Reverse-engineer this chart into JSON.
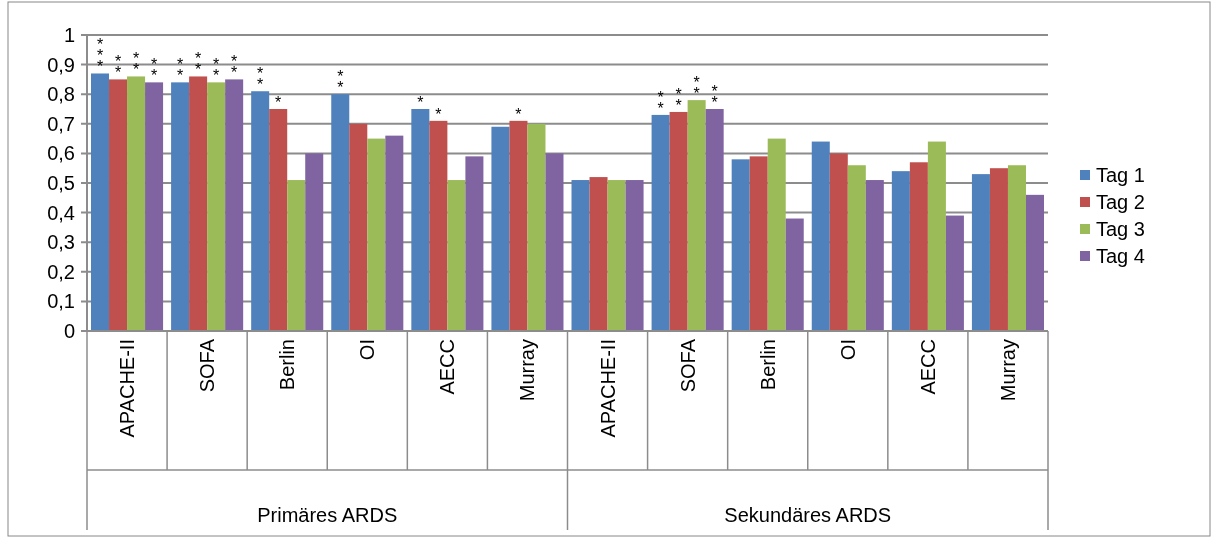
{
  "chart_data": {
    "type": "bar",
    "categories": [
      "APACHE-II",
      "SOFA",
      "Berlin",
      "OI",
      "AECC",
      "Murray",
      "APACHE-II",
      "SOFA",
      "Berlin",
      "OI",
      "AECC",
      "Murray"
    ],
    "series": [
      {
        "name": "Tag 1",
        "color": "#4f81bd",
        "values": [
          0.87,
          0.84,
          0.81,
          0.8,
          0.75,
          0.69,
          0.51,
          0.73,
          0.58,
          0.64,
          0.54,
          0.53
        ],
        "value_labels": [
          "***",
          "**",
          "**",
          "**",
          "*",
          null,
          null,
          "**",
          null,
          null,
          null,
          null
        ]
      },
      {
        "name": "Tag 2",
        "color": "#c0504d",
        "values": [
          0.85,
          0.86,
          0.75,
          0.7,
          0.71,
          0.71,
          0.52,
          0.74,
          0.59,
          0.6,
          0.57,
          0.55
        ],
        "value_labels": [
          "**",
          "**",
          "*",
          null,
          "*",
          "*",
          null,
          "**",
          null,
          null,
          null,
          null
        ]
      },
      {
        "name": "Tag 3",
        "color": "#9bbb59",
        "values": [
          0.86,
          0.84,
          0.51,
          0.65,
          0.51,
          0.7,
          0.51,
          0.78,
          0.65,
          0.56,
          0.64,
          0.56
        ],
        "value_labels": [
          "**",
          "**",
          null,
          null,
          null,
          null,
          null,
          "**",
          null,
          null,
          null,
          null
        ]
      },
      {
        "name": "Tag 4",
        "color": "#8064a2",
        "values": [
          0.84,
          0.85,
          0.6,
          0.66,
          0.59,
          0.6,
          0.51,
          0.75,
          0.38,
          0.51,
          0.39,
          0.46
        ],
        "value_labels": [
          "**",
          "**",
          null,
          null,
          null,
          null,
          null,
          "**",
          null,
          null,
          null,
          null
        ]
      }
    ],
    "annotations": [
      "Primäres ARDS",
      "Sekundäres ARDS"
    ],
    "ylim": [
      0,
      1
    ],
    "yticks": [
      0,
      {
        "value": 0.1,
        "label": "0,1"
      },
      {
        "value": 0.2,
        "label": "0,2"
      },
      {
        "value": 0.3,
        "label": "0,3"
      },
      {
        "value": 0.4,
        "label": "0,4"
      },
      {
        "value": 0.5,
        "label": "0,5"
      },
      {
        "value": 0.6,
        "label": "0,6"
      },
      {
        "value": 0.7,
        "label": "0,7"
      },
      {
        "value": 0.8,
        "label": "0,8"
      },
      {
        "value": 0.9,
        "label": "0,9"
      },
      1
    ],
    "grid": "y",
    "legend": "right"
  }
}
